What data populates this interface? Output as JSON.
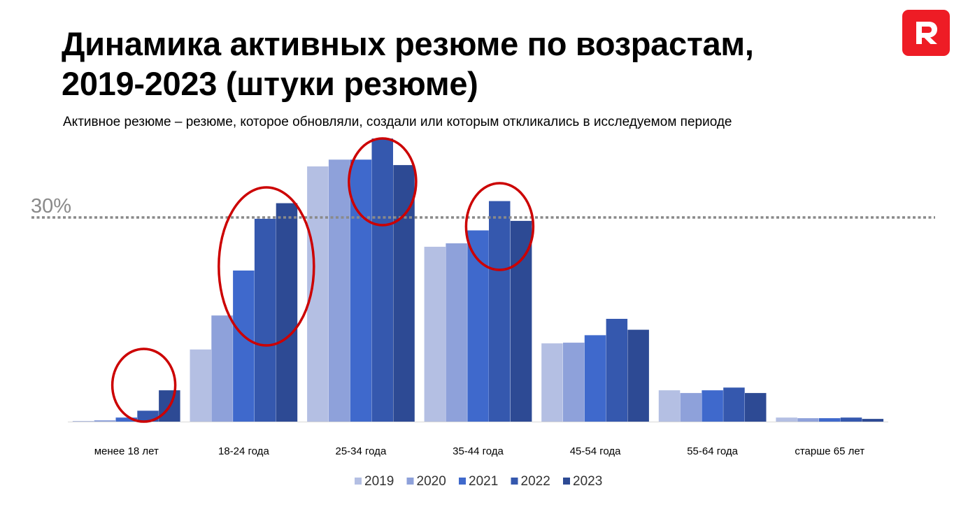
{
  "header": {
    "title_line1": "Динамика активных резюме по возрастам,",
    "title_line2": "2019-2023 (штуки резюме)",
    "subtitle": "Активное резюме – резюме, которое обновляли, создали или которым откликались в исследуемом периоде"
  },
  "logo": {
    "icon": "letter-r-logo",
    "color": "#ee1c25"
  },
  "chart_data": {
    "type": "bar",
    "title": "Динамика активных резюме по возрастам, 2019-2023 (штуки резюме)",
    "categories": [
      "менее 18 лет",
      "18-24 года",
      "25-34 года",
      "35-44 года",
      "45-54 года",
      "55-64 года",
      "старше 65 лет"
    ],
    "series": [
      {
        "name": "2019",
        "color": "#b4bfe3",
        "values": [
          0.1,
          10.6,
          37.5,
          25.7,
          11.5,
          4.6,
          0.6
        ]
      },
      {
        "name": "2020",
        "color": "#8ea1da",
        "values": [
          0.2,
          15.6,
          38.5,
          26.2,
          11.6,
          4.2,
          0.5
        ]
      },
      {
        "name": "2021",
        "color": "#3f69cc",
        "values": [
          0.6,
          22.2,
          38.5,
          28.1,
          12.7,
          4.6,
          0.5
        ]
      },
      {
        "name": "2022",
        "color": "#3558ae",
        "values": [
          1.6,
          29.8,
          41.6,
          32.4,
          15.1,
          5.0,
          0.6
        ]
      },
      {
        "name": "2023",
        "color": "#2d4a94",
        "values": [
          4.6,
          32.1,
          37.7,
          29.5,
          13.5,
          4.2,
          0.4
        ]
      }
    ],
    "ylim": [
      0,
      45
    ],
    "reference_line": {
      "value": 30,
      "label": "30%",
      "color": "#8a8a8a"
    },
    "highlights": [
      {
        "category": "менее 18 лет"
      },
      {
        "category": "18-24 года"
      },
      {
        "category": "25-34 года"
      },
      {
        "category": "35-44 года"
      }
    ],
    "highlight_color": "#cc0000",
    "legend_position": "bottom",
    "grid": false
  }
}
